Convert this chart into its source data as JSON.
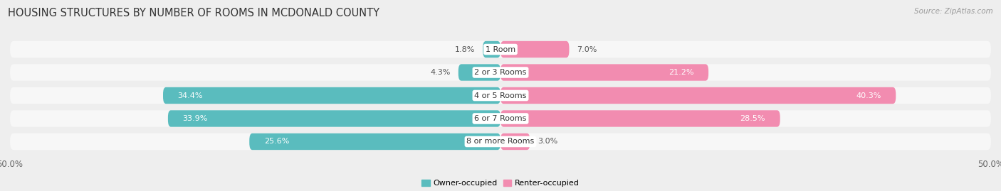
{
  "title": "HOUSING STRUCTURES BY NUMBER OF ROOMS IN MCDONALD COUNTY",
  "source": "Source: ZipAtlas.com",
  "categories": [
    "1 Room",
    "2 or 3 Rooms",
    "4 or 5 Rooms",
    "6 or 7 Rooms",
    "8 or more Rooms"
  ],
  "owner_values": [
    1.8,
    4.3,
    34.4,
    33.9,
    25.6
  ],
  "renter_values": [
    7.0,
    21.2,
    40.3,
    28.5,
    3.0
  ],
  "owner_color": "#5abcbe",
  "renter_color": "#f28cb0",
  "background_color": "#eeeeee",
  "row_bg_color": "#f7f7f7",
  "xlim": 50.0,
  "legend_owner": "Owner-occupied",
  "legend_renter": "Renter-occupied",
  "bar_height": 0.72,
  "title_fontsize": 10.5,
  "label_fontsize": 8.0,
  "value_fontsize": 8.0,
  "tick_fontsize": 8.5,
  "source_fontsize": 7.5
}
